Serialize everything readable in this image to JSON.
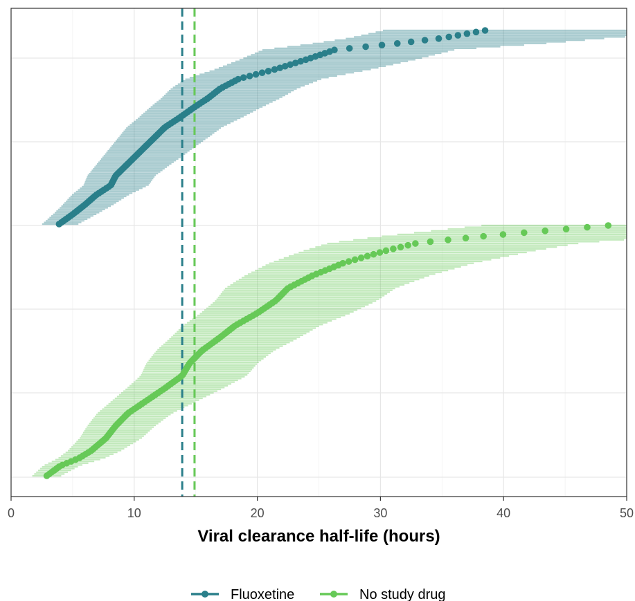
{
  "chart_data": {
    "type": "scatter",
    "xlabel": "Viral clearance half-life (hours)",
    "xlim": [
      0,
      50
    ],
    "x_ticks": [
      0,
      10,
      20,
      30,
      40,
      50
    ],
    "x_tick_labels": [
      "0",
      "10",
      "20",
      "30",
      "40",
      "50"
    ],
    "grid": true,
    "legend_position": "bottom",
    "reference_lines": [
      {
        "series": "Fluoxetine",
        "x": 13.9,
        "style": "dashed"
      },
      {
        "series": "No study drug",
        "x": 14.9,
        "style": "dashed"
      }
    ],
    "series": [
      {
        "name": "Fluoxetine",
        "color": "#2a7f8a",
        "band_color": "#2a7f8a",
        "n": 120,
        "anchors": [
          [
            0,
            3.9,
            0.2,
            2.0
          ],
          [
            0.05,
            5.0,
            0.2,
            2.4
          ],
          [
            0.1,
            6.0,
            0.2,
            2.9
          ],
          [
            0.15,
            6.9,
            0.2,
            3.3
          ],
          [
            0.2,
            8.1,
            0.2,
            3.8
          ],
          [
            0.25,
            8.5,
            0.2,
            4.0
          ],
          [
            0.3,
            9.3,
            0.2,
            4.3
          ],
          [
            0.35,
            10.1,
            0.2,
            4.7
          ],
          [
            0.4,
            10.9,
            0.2,
            5.0
          ],
          [
            0.45,
            11.7,
            0.2,
            5.4
          ],
          [
            0.5,
            12.5,
            0.2,
            5.7
          ],
          [
            0.55,
            13.7,
            0.2,
            6.2
          ],
          [
            0.6,
            14.8,
            0.2,
            6.7
          ],
          [
            0.65,
            16.0,
            0.2,
            7.2
          ],
          [
            0.7,
            17.0,
            0.2,
            7.7
          ],
          [
            0.75,
            18.5,
            0.2,
            8.3
          ],
          [
            0.8,
            21.5,
            0.2,
            9.6
          ],
          [
            0.85,
            24.0,
            0.2,
            11.0
          ],
          [
            0.9,
            26.3,
            0.2,
            12.0
          ],
          [
            0.93,
            31.0,
            0.2,
            15.0
          ],
          [
            0.96,
            35.0,
            0.2,
            17.0
          ],
          [
            1,
            38.5,
            0.2,
            25.0
          ]
        ],
        "isolated_points": [
          31.0,
          34.2,
          35.0,
          36.0,
          38.5
        ]
      },
      {
        "name": "No study drug",
        "color": "#66c957",
        "band_color": "#66c957",
        "n": 140,
        "anchors": [
          [
            0,
            2.9,
            0.2,
            1.5
          ],
          [
            0.04,
            4.0,
            0.2,
            2.0
          ],
          [
            0.07,
            5.5,
            0.2,
            2.6
          ],
          [
            0.1,
            6.5,
            0.2,
            3.0
          ],
          [
            0.15,
            7.7,
            0.2,
            3.6
          ],
          [
            0.2,
            8.5,
            0.2,
            4.0
          ],
          [
            0.25,
            9.5,
            0.2,
            4.5
          ],
          [
            0.3,
            11.0,
            0.2,
            5.2
          ],
          [
            0.35,
            12.5,
            0.2,
            5.9
          ],
          [
            0.4,
            13.9,
            0.2,
            6.5
          ],
          [
            0.45,
            14.5,
            0.2,
            6.9
          ],
          [
            0.5,
            15.5,
            0.2,
            7.3
          ],
          [
            0.55,
            16.9,
            0.2,
            8.0
          ],
          [
            0.6,
            18.2,
            0.2,
            8.6
          ],
          [
            0.65,
            20.0,
            0.2,
            9.5
          ],
          [
            0.7,
            21.5,
            0.2,
            10.3
          ],
          [
            0.75,
            22.5,
            0.2,
            11.0
          ],
          [
            0.8,
            24.5,
            0.2,
            12.0
          ],
          [
            0.85,
            27.0,
            0.2,
            13.5
          ],
          [
            0.9,
            30.5,
            0.2,
            15.5
          ],
          [
            0.93,
            33.0,
            0.2,
            17.0
          ],
          [
            0.96,
            39.0,
            0.2,
            20.0
          ],
          [
            1,
            48.5,
            0.2,
            25.0
          ]
        ],
        "isolated_points": [
          30.0,
          31.0,
          33.0,
          35.8,
          39.1,
          40.1,
          41.2,
          46.4,
          48.5
        ]
      }
    ]
  }
}
